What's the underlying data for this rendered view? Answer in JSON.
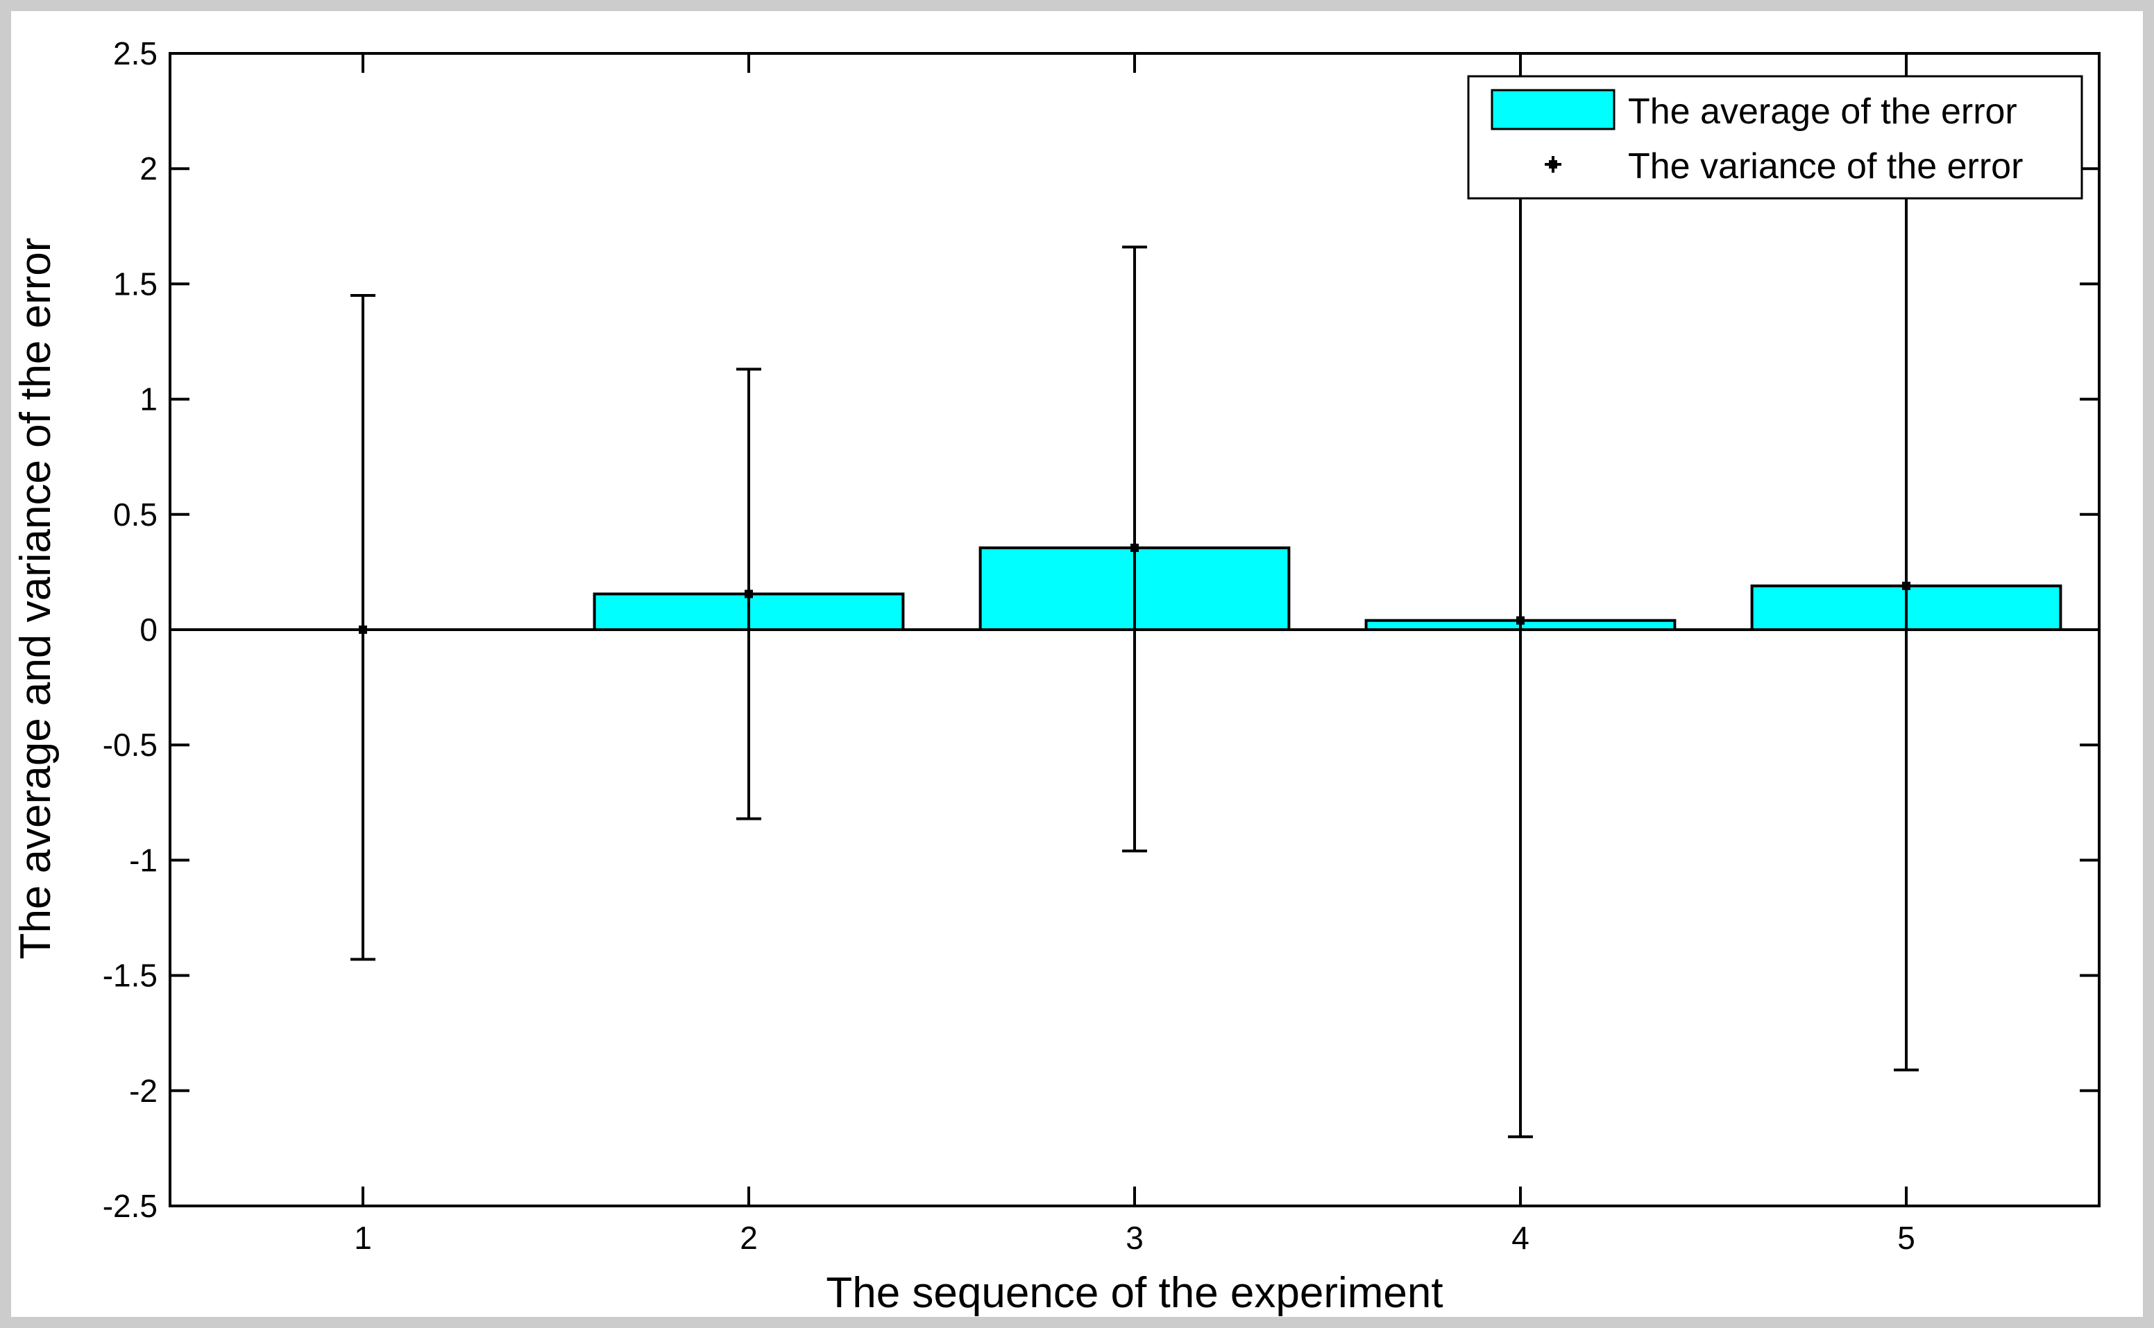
{
  "chart_data": {
    "type": "bar",
    "categories": [
      "1",
      "2",
      "3",
      "4",
      "5"
    ],
    "series": [
      {
        "name": "The average of the error",
        "values": [
          0.0,
          0.155,
          0.355,
          0.04,
          0.19
        ],
        "color": "#00FFFF"
      }
    ],
    "error_bars": {
      "name": "The variance of the error",
      "lower": [
        -1.43,
        -0.82,
        -0.96,
        -2.2,
        -1.91
      ],
      "upper": [
        1.45,
        1.13,
        1.66,
        2.5,
        2.5
      ]
    },
    "xlabel": "The sequence of the experiment",
    "ylabel": "The average and variance of the error",
    "ylim": [
      -2.5,
      2.5
    ],
    "xlim": [
      0.5,
      5.5
    ],
    "yticks": [
      "2.5",
      "2",
      "1.5",
      "1",
      "0.5",
      "0",
      "-0.5",
      "-1",
      "-1.5",
      "-2",
      "-2.5"
    ],
    "ytick_values": [
      2.5,
      2,
      1.5,
      1,
      0.5,
      0,
      -0.5,
      -1,
      -1.5,
      -2,
      -2.5
    ],
    "grid": false,
    "legend_position": "top-right",
    "frame_color": "#CCCCCC"
  }
}
